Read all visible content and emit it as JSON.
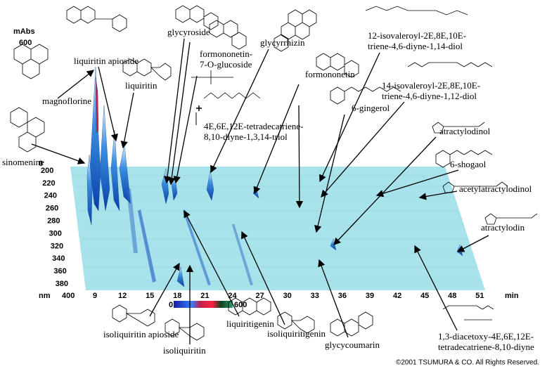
{
  "axes": {
    "intensity_unit": "mAbs",
    "intensity_max": "600",
    "intensity_min": "0",
    "wavelength_unit": "nm",
    "time_unit": "min",
    "wavelength_ticks": [
      "200",
      "220",
      "240",
      "260",
      "280",
      "300",
      "320",
      "340",
      "360",
      "380",
      "400"
    ],
    "time_ticks": [
      "9",
      "12",
      "15",
      "18",
      "21",
      "24",
      "27",
      "30",
      "33",
      "36",
      "39",
      "42",
      "45",
      "48",
      "51"
    ]
  },
  "color_scale": {
    "min": "0",
    "max": "600"
  },
  "compounds": [
    {
      "lines": [
        "magnoflorine"
      ]
    },
    {
      "lines": [
        "liquiritin apioside"
      ]
    },
    {
      "lines": [
        "liquiritin"
      ]
    },
    {
      "lines": [
        "glycyroside"
      ]
    },
    {
      "lines": [
        "formononetin-",
        "7-O-glucoside"
      ]
    },
    {
      "lines": [
        "glycyrrhizin"
      ]
    },
    {
      "lines": [
        "formononetin"
      ]
    },
    {
      "lines": [
        "4E,6E,12E-tetradecatriene-",
        "8,10-diyne-1,3,14-triol"
      ]
    },
    {
      "lines": [
        "6-gingerol"
      ]
    },
    {
      "lines": [
        "12-isovaleroyl-2E,8E,10E-",
        "triene-4,6-diyne-1,14-diol"
      ]
    },
    {
      "lines": [
        "14-isovaleroyl-2E,8E,10E-",
        "triene-4,6-diyne-1,12-diol"
      ]
    },
    {
      "lines": [
        "atractylodinol"
      ]
    },
    {
      "lines": [
        "6-shogaol"
      ]
    },
    {
      "lines": [
        "acetylatractylodinol"
      ]
    },
    {
      "lines": [
        "atractylodin"
      ]
    },
    {
      "lines": [
        "sinomenine"
      ]
    },
    {
      "lines": [
        "isoliquiritin apioside"
      ]
    },
    {
      "lines": [
        "isoliquiritin"
      ]
    },
    {
      "lines": [
        "liquiritigenin"
      ]
    },
    {
      "lines": [
        "isoliquiritigenin"
      ]
    },
    {
      "lines": [
        "glycycoumarin"
      ]
    },
    {
      "lines": [
        "1,3-diacetoxy-4E,6E,12E-",
        "tetradecatriene-8,10-diyne"
      ]
    }
  ],
  "copyright": "©2001 TSUMURA & CO. All Rights Reserved."
}
